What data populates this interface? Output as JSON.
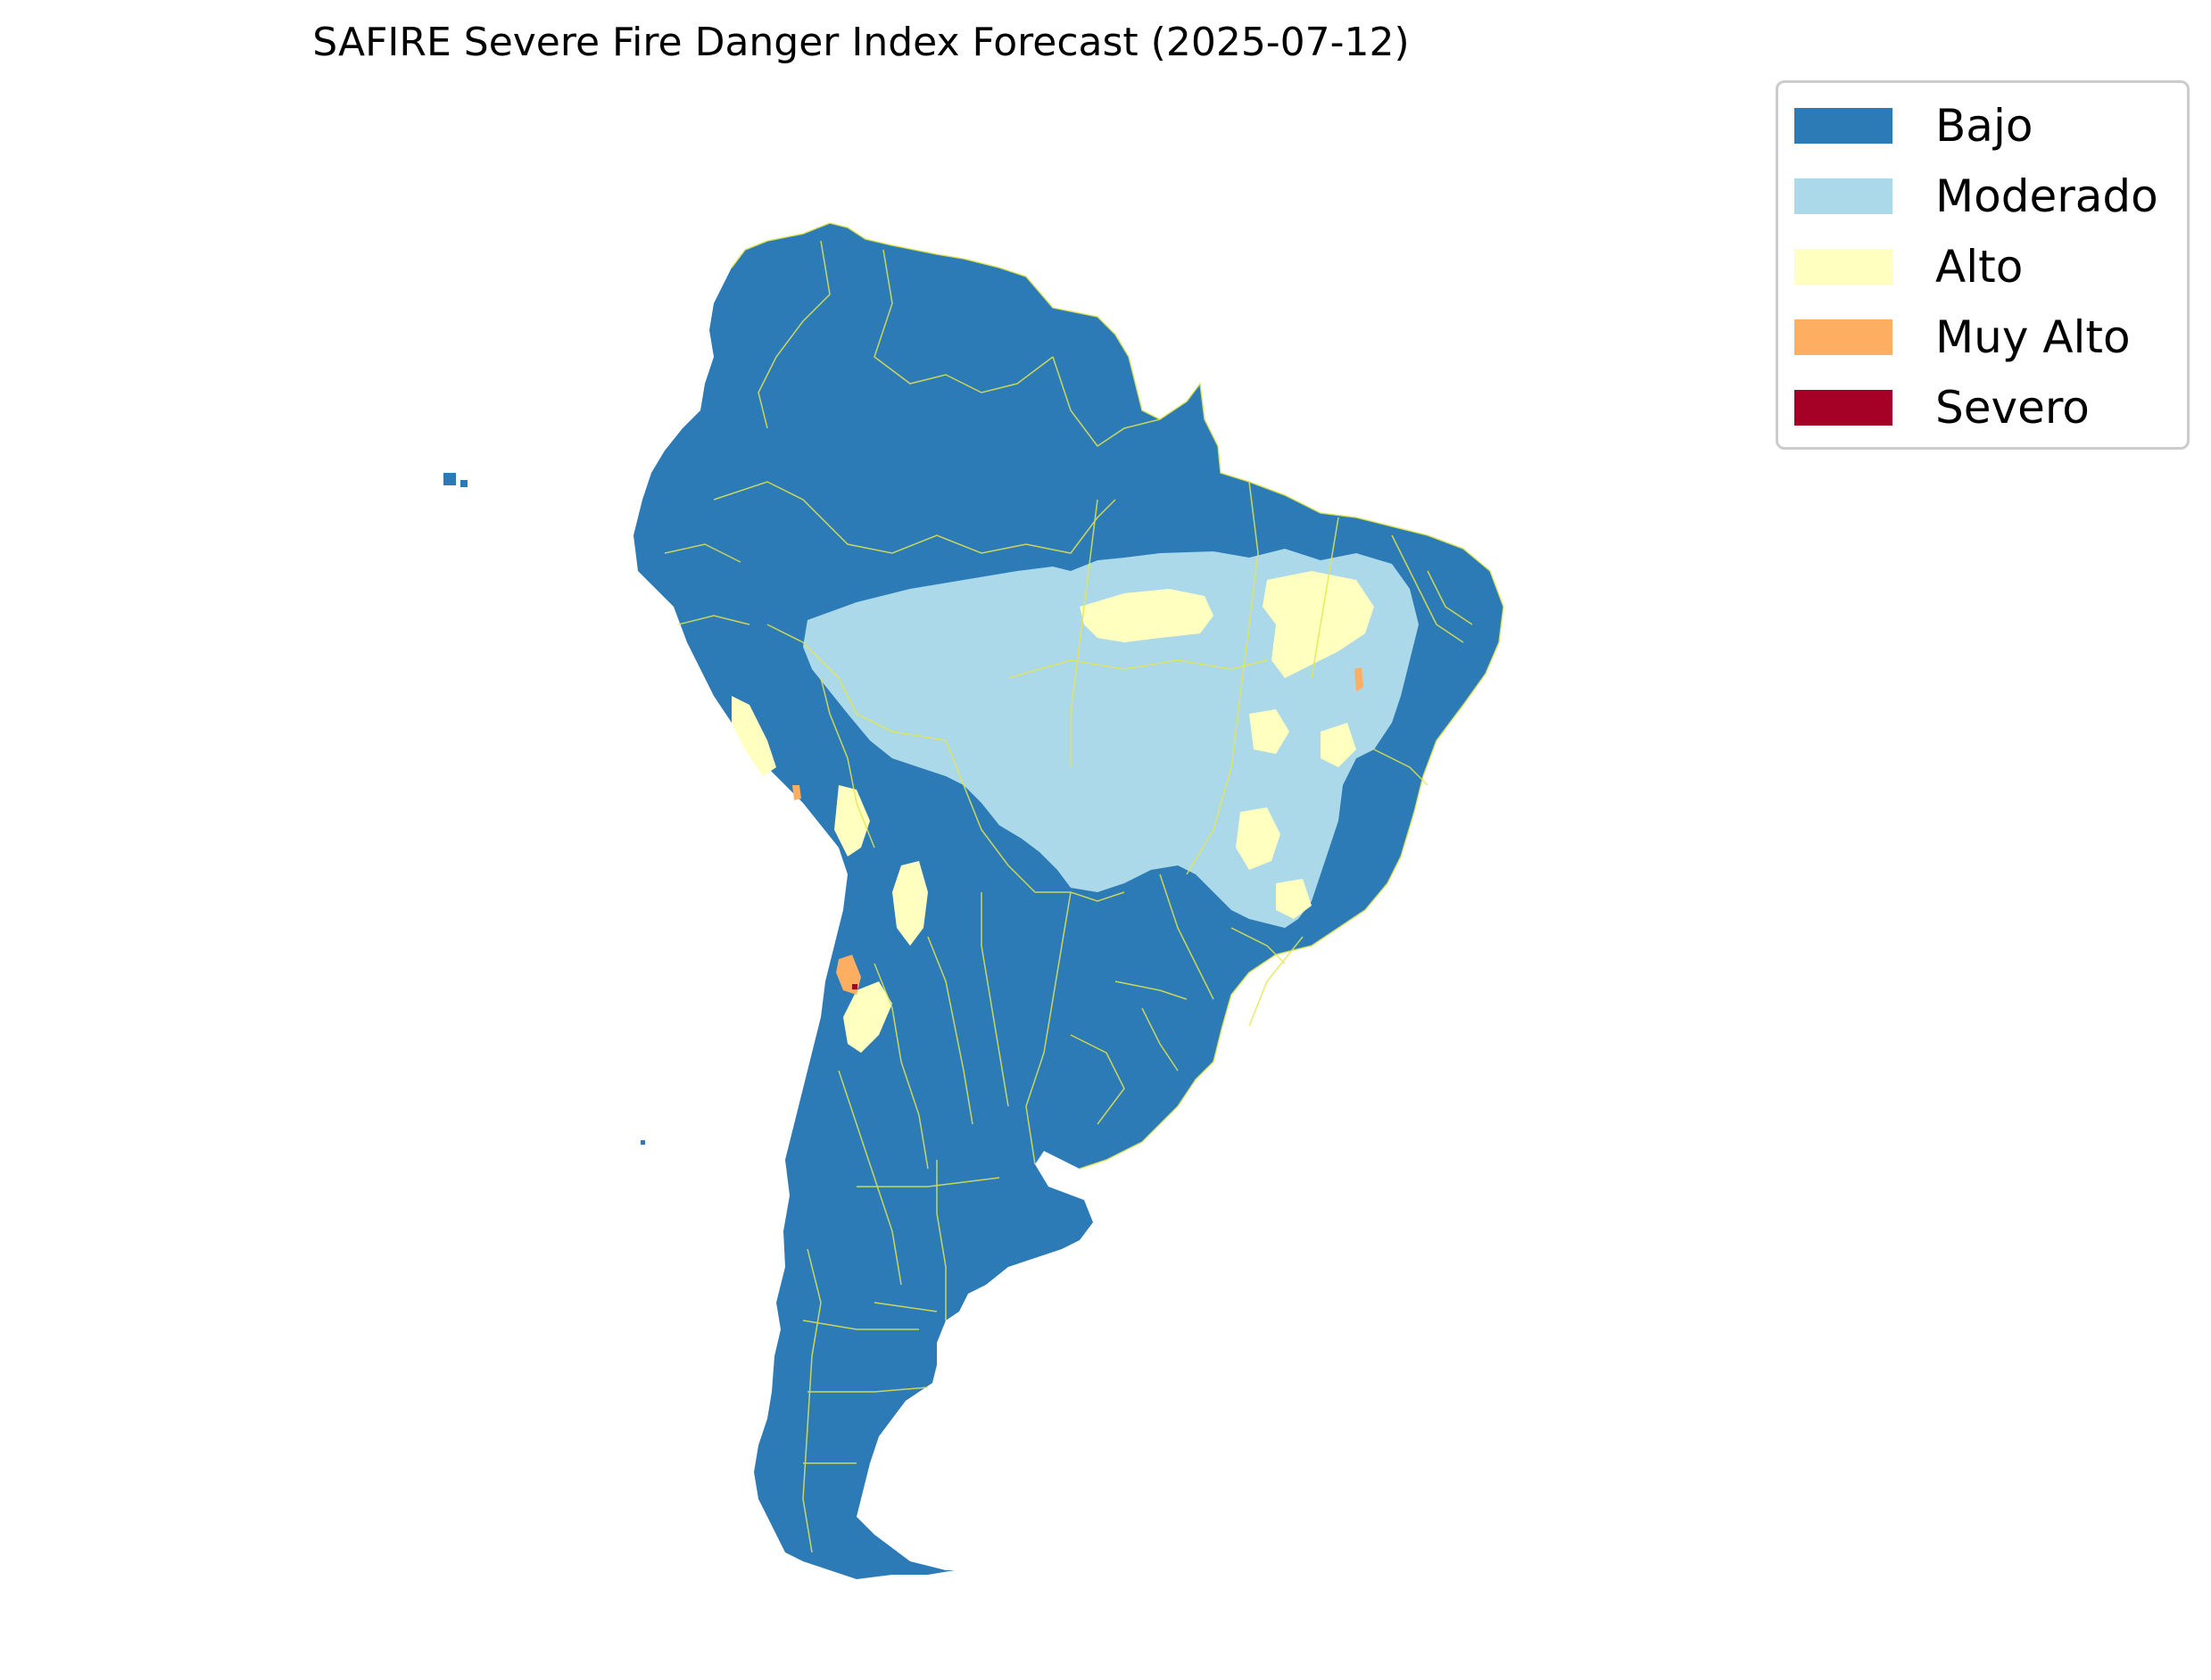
{
  "title": "SAFIRE Severe Fire Danger Index Forecast (2025-07-12)",
  "legend": {
    "items": [
      {
        "label": "Bajo",
        "color": "#2c7bb6"
      },
      {
        "label": "Moderado",
        "color": "#abd9e9"
      },
      {
        "label": "Alto",
        "color": "#ffffbf"
      },
      {
        "label": "Muy Alto",
        "color": "#fdae61"
      },
      {
        "label": "Severo",
        "color": "#a50026"
      }
    ]
  },
  "colors": {
    "boundary": "#e6e64c",
    "background": "#ffffff"
  }
}
